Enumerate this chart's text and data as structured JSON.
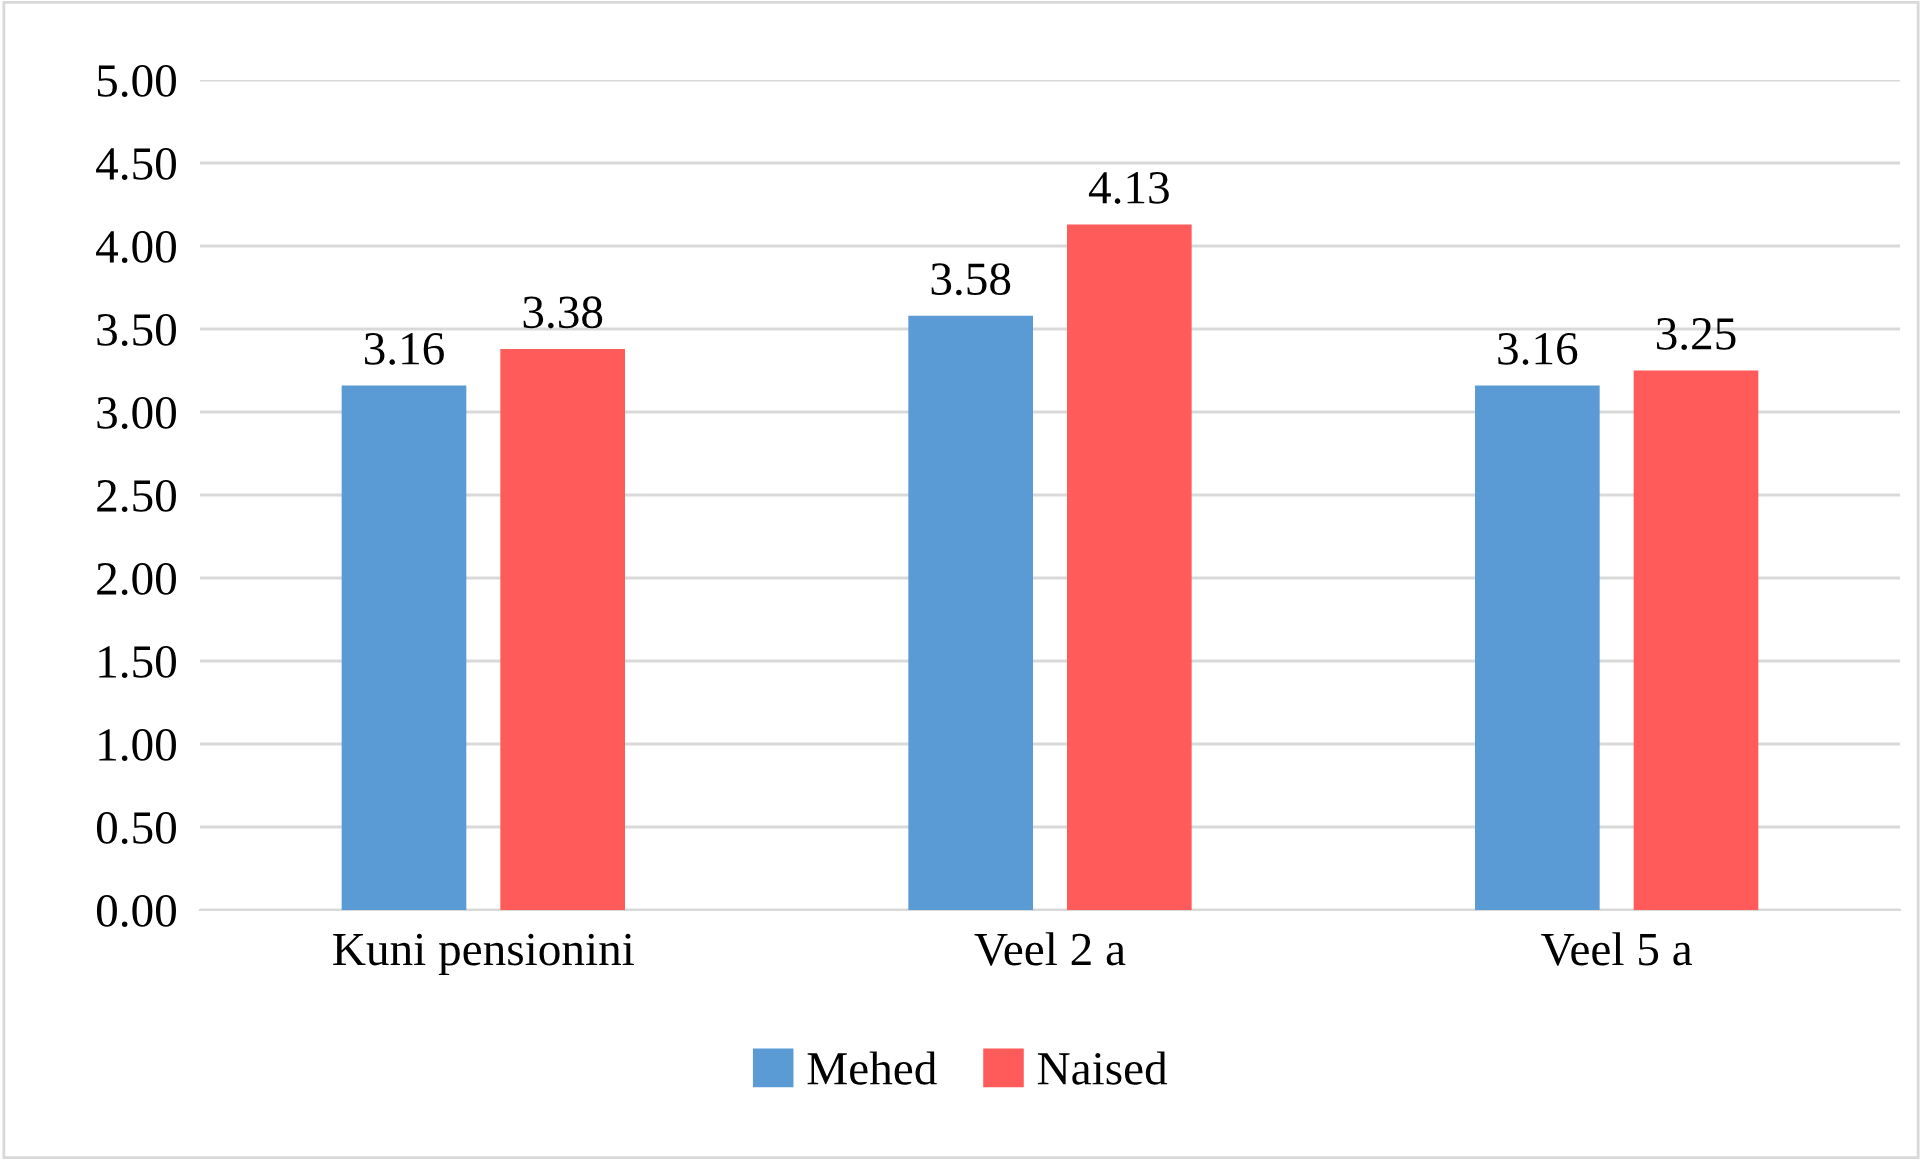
{
  "chart_data": {
    "type": "bar",
    "categories": [
      "Kuni pensionini",
      "Veel 2 a",
      "Veel 5 a"
    ],
    "series": [
      {
        "name": "Mehed",
        "color": "#5b9bd5",
        "values": [
          3.16,
          3.58,
          3.16
        ]
      },
      {
        "name": "Naised",
        "color": "#ff5b5b",
        "values": [
          3.38,
          4.13,
          3.25
        ]
      }
    ],
    "ylim": [
      0,
      5
    ],
    "yticks": [
      {
        "value": 0,
        "label": "0.00"
      },
      {
        "value": 0.5,
        "label": "0.50"
      },
      {
        "value": 1,
        "label": "1.00"
      },
      {
        "value": 1.5,
        "label": "1.50"
      },
      {
        "value": 2,
        "label": "2.00"
      },
      {
        "value": 2.5,
        "label": "2.50"
      },
      {
        "value": 3,
        "label": "3.00"
      },
      {
        "value": 3.5,
        "label": "3.50"
      },
      {
        "value": 4,
        "label": "4.00"
      },
      {
        "value": 4.5,
        "label": "4.50"
      },
      {
        "value": 5,
        "label": "5.00"
      }
    ],
    "grid": "y",
    "legend": "bottom",
    "data_labels": true
  }
}
